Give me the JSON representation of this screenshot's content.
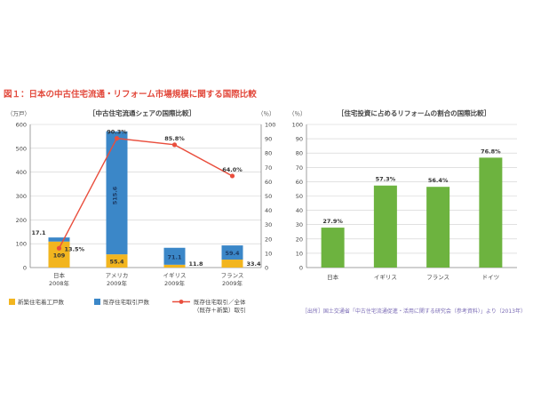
{
  "figure_title": "図１：日本の中古住宅流通・リフォーム市場規模に関する国際比較",
  "source_note": "［出所］国土交通省「中古住宅流通促進・活用に関する研究会（参考資料）」より（2013年）",
  "colors": {
    "new_build": "#f2b51f",
    "existing": "#3b87c8",
    "ratio_line": "#e94e3d",
    "reform": "#6db33f",
    "title": "#e2483b"
  },
  "chart_data": [
    {
      "type": "bar+line",
      "title": "［中古住宅流通シェアの国際比較］",
      "left_axis_unit": "（万戸）",
      "right_axis_unit": "（％）",
      "left_ylim": [
        0,
        600
      ],
      "left_ticks": [
        "0",
        "100",
        "200",
        "300",
        "400",
        "500",
        "600"
      ],
      "right_ylim": [
        0,
        100
      ],
      "right_ticks": [
        "0",
        "10",
        "20",
        "30",
        "40",
        "50",
        "60",
        "70",
        "80",
        "90",
        "100"
      ],
      "categories": [
        {
          "name": "日本",
          "year": "2008年"
        },
        {
          "name": "アメリカ",
          "year": "2009年"
        },
        {
          "name": "イギリス",
          "year": "2009年"
        },
        {
          "name": "フランス",
          "year": "2009年"
        }
      ],
      "series": [
        {
          "name": "新築住宅着工戸数",
          "values": [
            109,
            55.4,
            11.8,
            33.4
          ],
          "labels": [
            "109",
            "55.4",
            "11.8",
            "33.4"
          ]
        },
        {
          "name": "既存住宅取引戸数",
          "values": [
            17.1,
            515.6,
            71.1,
            59.4
          ],
          "labels": [
            "17.1",
            "515.6",
            "71.1",
            "59.4"
          ]
        }
      ],
      "ratio_line": {
        "name": "既存住宅取引／全体（既存＋新築）取引",
        "values": [
          13.5,
          90.3,
          85.8,
          64.0
        ],
        "labels": [
          "13.5%",
          "90.3%",
          "85.8%",
          "64.0%"
        ]
      },
      "legend": [
        "新築住宅着工戸数",
        "既存住宅取引戸数",
        "既存住宅取引／全体",
        "（既存＋新築）取引"
      ]
    },
    {
      "type": "bar",
      "title": "［住宅投資に占めるリフォームの割合の国際比較］",
      "y_unit": "（％）",
      "ylim": [
        0,
        100
      ],
      "y_ticks": [
        "0",
        "10",
        "20",
        "30",
        "40",
        "50",
        "60",
        "70",
        "80",
        "90",
        "100"
      ],
      "categories": [
        "日本",
        "イギリス",
        "フランス",
        "ドイツ"
      ],
      "values": [
        27.9,
        57.3,
        56.4,
        76.8
      ],
      "labels": [
        "27.9%",
        "57.3%",
        "56.4%",
        "76.8%"
      ]
    }
  ]
}
